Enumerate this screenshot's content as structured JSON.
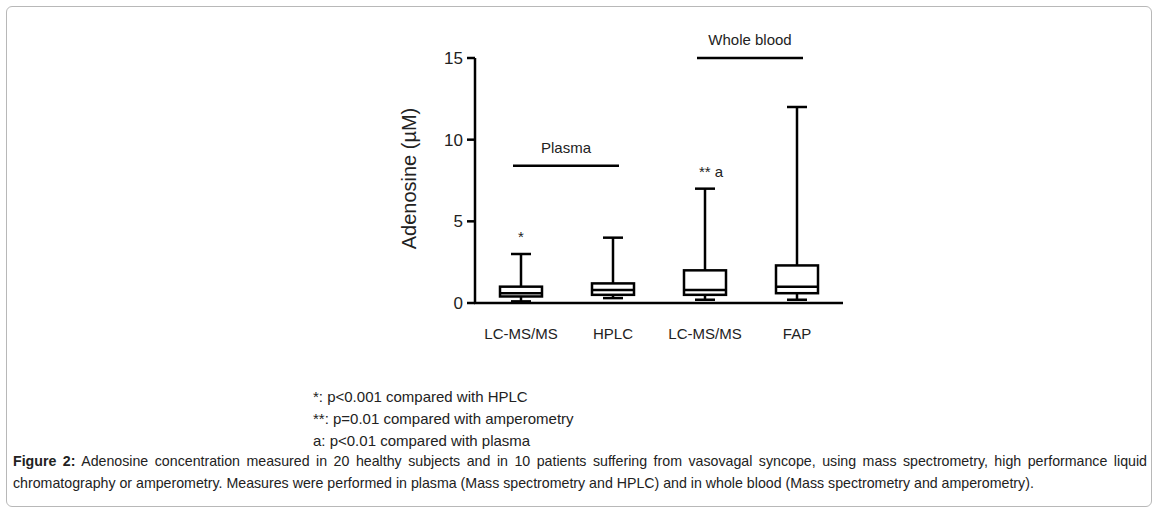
{
  "chart_data": {
    "type": "box",
    "y_label": "Adenosine (µM)",
    "categories": [
      "LC-MS/MS",
      "HPLC",
      "LC-MS/MS",
      "FAP"
    ],
    "stats": {
      "min": [
        0.1,
        0.3,
        0.2,
        0.2
      ],
      "q1": [
        0.4,
        0.5,
        0.5,
        0.6
      ],
      "median": [
        0.6,
        0.8,
        0.8,
        1.0
      ],
      "q3": [
        1.0,
        1.2,
        2.0,
        2.3
      ],
      "max": [
        3,
        4,
        7,
        12
      ]
    },
    "groups": [
      {
        "label": "Plasma",
        "from": 0,
        "to": 1
      },
      {
        "label": "Whole blood",
        "from": 2,
        "to": 3
      }
    ],
    "annotations": [
      {
        "text": "*",
        "category": 0
      },
      {
        "text": "** a",
        "category": 2
      }
    ],
    "footnotes": [
      "*: p<0.001 compared with HPLC",
      "**: p=0.01 compared with amperometry",
      "a:  p<0.01 compared with plasma"
    ],
    "caption": {
      "label": "Figure 2:",
      "text": "Adenosine concentration measured in 20 healthy subjects and in 10 patients suffering from vasovagal syncope, using mass spectrometry, high performance liquid chromatography or amperometry. Measures were performed in plasma (Mass spectrometry and HPLC) and in whole blood (Mass spectrometry and amperometry)."
    },
    "ylim": [
      0,
      15
    ],
    "yticks": [
      0,
      5,
      10,
      15
    ],
    "color": "#000000"
  }
}
